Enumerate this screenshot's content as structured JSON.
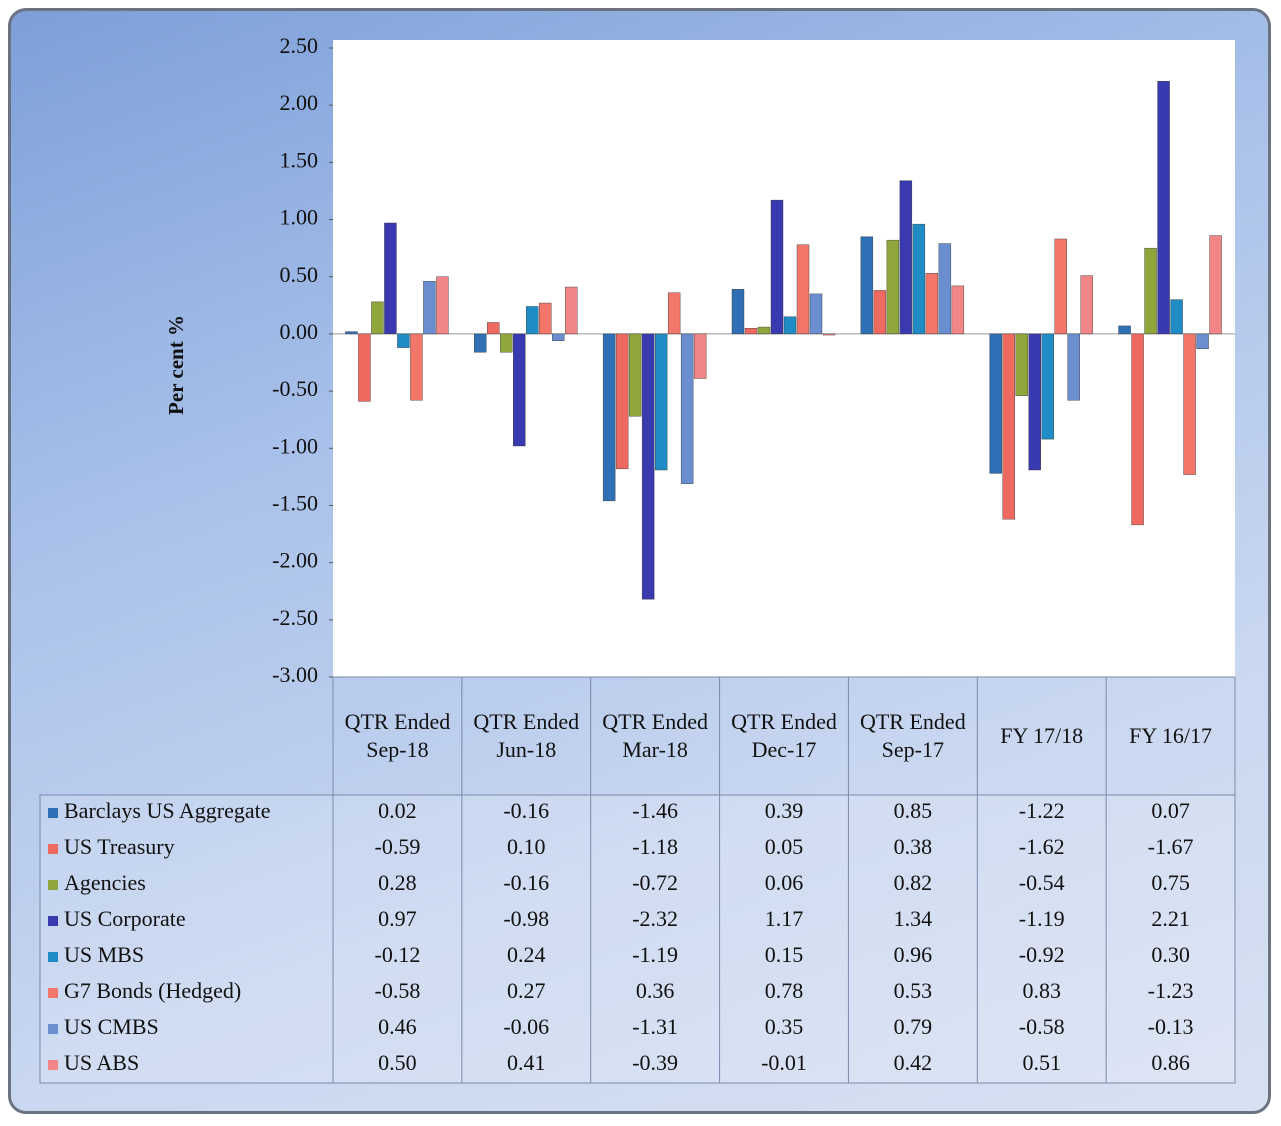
{
  "chart_data": {
    "type": "bar",
    "y_label": "Per cent %",
    "categories": [
      "QTR Ended Sep-18",
      "QTR Ended Jun-18",
      "QTR Ended Mar-18",
      "QTR Ended Dec-17",
      "QTR Ended Sep-17",
      "FY 17/18",
      "FY 16/17"
    ],
    "ylim": [
      -3,
      2.5
    ],
    "yticks": [
      {
        "value": 2.5,
        "label": "2.50"
      },
      {
        "value": 2,
        "label": "2.00"
      },
      {
        "value": 1.5,
        "label": "1.50"
      },
      {
        "value": 1,
        "label": "1.00"
      },
      {
        "value": 0.5,
        "label": "0.50"
      },
      {
        "value": 0,
        "label": "0.00"
      },
      {
        "value": -0.5,
        "label": "-0.50"
      },
      {
        "value": -1,
        "label": "-1.00"
      },
      {
        "value": -1.5,
        "label": "-1.50"
      },
      {
        "value": -2,
        "label": "-2.00"
      },
      {
        "value": -2.5,
        "label": "-2.50"
      },
      {
        "value": -3,
        "label": "-3.00"
      }
    ],
    "series": [
      {
        "name": "Barclays US Aggregate",
        "color": "#2f6fb5",
        "values": [
          0.02,
          -0.16,
          -1.46,
          0.39,
          0.85,
          -1.22,
          0.07
        ],
        "value_labels": [
          "0.02",
          "-0.16",
          "-1.46",
          "0.39",
          "0.85",
          "-1.22",
          "0.07"
        ]
      },
      {
        "name": "US Treasury",
        "color": "#ee6a60",
        "values": [
          -0.59,
          0.1,
          -1.18,
          0.05,
          0.38,
          -1.62,
          -1.67
        ],
        "value_labels": [
          "-0.59",
          "0.10",
          "-1.18",
          "0.05",
          "0.38",
          "-1.62",
          "-1.67"
        ]
      },
      {
        "name": "Agencies",
        "color": "#8fa63c",
        "values": [
          0.28,
          -0.16,
          -0.72,
          0.06,
          0.82,
          -0.54,
          0.75
        ],
        "value_labels": [
          "0.28",
          "-0.16",
          "-0.72",
          "0.06",
          "0.82",
          "-0.54",
          "0.75"
        ]
      },
      {
        "name": "US Corporate",
        "color": "#3a3ab0",
        "values": [
          0.97,
          -0.98,
          -2.32,
          1.17,
          1.34,
          -1.19,
          2.21
        ],
        "value_labels": [
          "0.97",
          "-0.98",
          "-2.32",
          "1.17",
          "1.34",
          "-1.19",
          "2.21"
        ]
      },
      {
        "name": "US MBS",
        "color": "#1f8cc6",
        "values": [
          -0.12,
          0.24,
          -1.19,
          0.15,
          0.96,
          -0.92,
          0.3
        ],
        "value_labels": [
          "-0.12",
          "0.24",
          "-1.19",
          "0.15",
          "0.96",
          "-0.92",
          "0.30"
        ]
      },
      {
        "name": "G7 Bonds (Hedged)",
        "color": "#f2766a",
        "values": [
          -0.58,
          0.27,
          0.36,
          0.78,
          0.53,
          0.83,
          -1.23
        ],
        "value_labels": [
          "-0.58",
          "0.27",
          "0.36",
          "0.78",
          "0.53",
          "0.83",
          "-1.23"
        ]
      },
      {
        "name": "US CMBS",
        "color": "#6a8ed0",
        "values": [
          0.46,
          -0.06,
          -1.31,
          0.35,
          0.79,
          -0.58,
          -0.13
        ],
        "value_labels": [
          "0.46",
          "-0.06",
          "-1.31",
          "0.35",
          "0.79",
          "-0.58",
          "-0.13"
        ]
      },
      {
        "name": "US ABS",
        "color": "#f28585",
        "values": [
          0.5,
          0.41,
          -0.39,
          -0.01,
          0.42,
          0.51,
          0.86
        ],
        "value_labels": [
          "0.50",
          "0.41",
          "-0.39",
          "-0.01",
          "0.42",
          "0.51",
          "0.86"
        ]
      }
    ]
  }
}
